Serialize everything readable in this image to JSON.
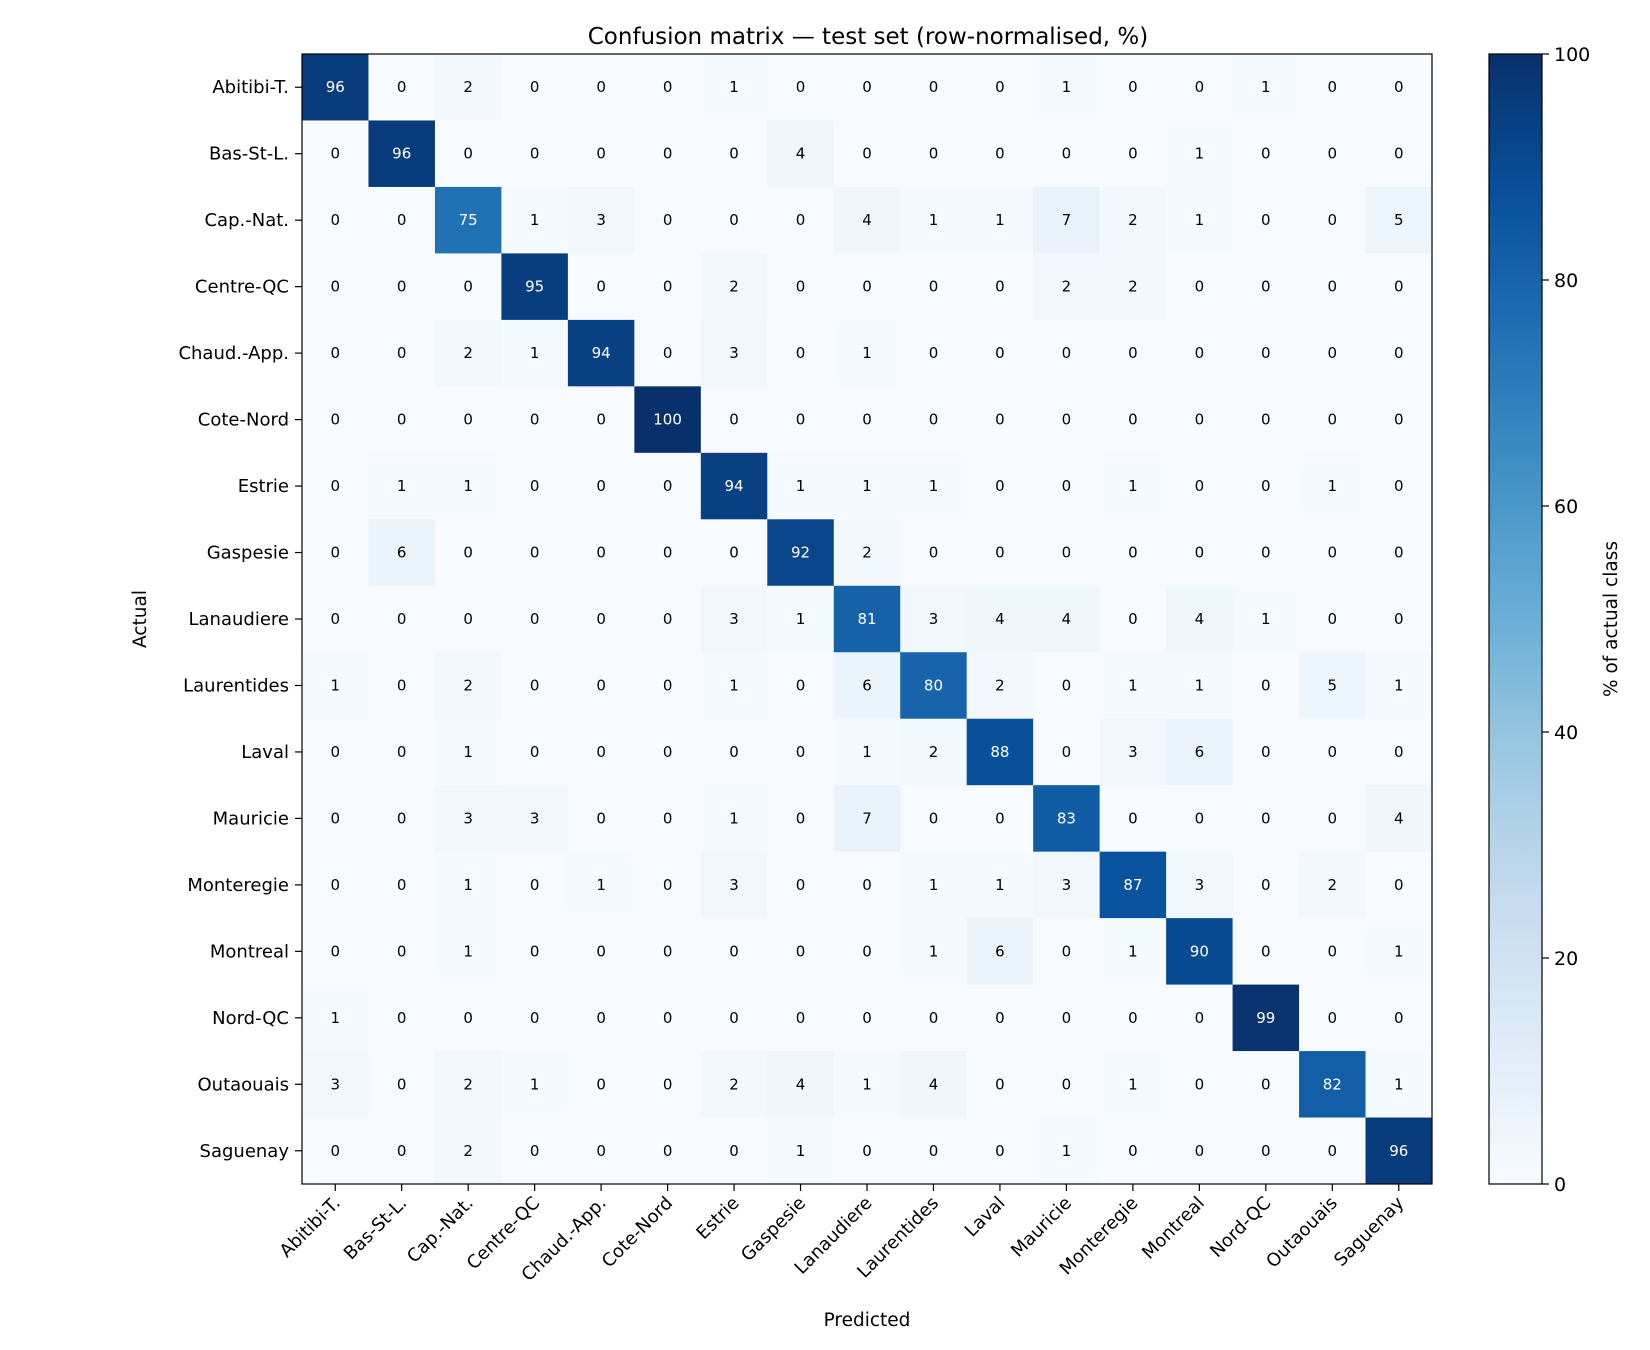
{
  "chart_data": {
    "type": "heatmap",
    "title": "Confusion matrix — test set (row-normalised, %)",
    "xlabel": "Predicted",
    "ylabel": "Actual",
    "colorbar_label": "% of actual class",
    "colormap": "Blues",
    "color_low": "#f7fbff",
    "color_high": "#08306b",
    "vmin": 0,
    "vmax": 100,
    "colorbar_ticks": [
      0,
      20,
      40,
      60,
      80,
      100
    ],
    "row_labels": [
      "Abitibi-T.",
      "Bas-St-L.",
      "Cap.-Nat.",
      "Centre-QC",
      "Chaud.-App.",
      "Cote-Nord",
      "Estrie",
      "Gaspesie",
      "Lanaudiere",
      "Laurentides",
      "Laval",
      "Mauricie",
      "Monteregie",
      "Montreal",
      "Nord-QC",
      "Outaouais",
      "Saguenay"
    ],
    "col_labels": [
      "Abitibi-T.",
      "Bas-St-L.",
      "Cap.-Nat.",
      "Centre-QC",
      "Chaud.-App.",
      "Cote-Nord",
      "Estrie",
      "Gaspesie",
      "Lanaudiere",
      "Laurentides",
      "Laval",
      "Mauricie",
      "Monteregie",
      "Montreal",
      "Nord-QC",
      "Outaouais",
      "Saguenay"
    ],
    "values": [
      [
        96,
        0,
        2,
        0,
        0,
        0,
        1,
        0,
        0,
        0,
        0,
        1,
        0,
        0,
        1,
        0,
        0
      ],
      [
        0,
        96,
        0,
        0,
        0,
        0,
        0,
        4,
        0,
        0,
        0,
        0,
        0,
        1,
        0,
        0,
        0
      ],
      [
        0,
        0,
        75,
        1,
        3,
        0,
        0,
        0,
        4,
        1,
        1,
        7,
        2,
        1,
        0,
        0,
        5
      ],
      [
        0,
        0,
        0,
        95,
        0,
        0,
        2,
        0,
        0,
        0,
        0,
        2,
        2,
        0,
        0,
        0,
        0
      ],
      [
        0,
        0,
        2,
        1,
        94,
        0,
        3,
        0,
        1,
        0,
        0,
        0,
        0,
        0,
        0,
        0,
        0
      ],
      [
        0,
        0,
        0,
        0,
        0,
        100,
        0,
        0,
        0,
        0,
        0,
        0,
        0,
        0,
        0,
        0,
        0
      ],
      [
        0,
        1,
        1,
        0,
        0,
        0,
        94,
        1,
        1,
        1,
        0,
        0,
        1,
        0,
        0,
        1,
        0
      ],
      [
        0,
        6,
        0,
        0,
        0,
        0,
        0,
        92,
        2,
        0,
        0,
        0,
        0,
        0,
        0,
        0,
        0
      ],
      [
        0,
        0,
        0,
        0,
        0,
        0,
        3,
        1,
        81,
        3,
        4,
        4,
        0,
        4,
        1,
        0,
        0
      ],
      [
        1,
        0,
        2,
        0,
        0,
        0,
        1,
        0,
        6,
        80,
        2,
        0,
        1,
        1,
        0,
        5,
        1
      ],
      [
        0,
        0,
        1,
        0,
        0,
        0,
        0,
        0,
        1,
        2,
        88,
        0,
        3,
        6,
        0,
        0,
        0
      ],
      [
        0,
        0,
        3,
        3,
        0,
        0,
        1,
        0,
        7,
        0,
        0,
        83,
        0,
        0,
        0,
        0,
        4
      ],
      [
        0,
        0,
        1,
        0,
        1,
        0,
        3,
        0,
        0,
        1,
        1,
        3,
        87,
        3,
        0,
        2,
        0
      ],
      [
        0,
        0,
        1,
        0,
        0,
        0,
        0,
        0,
        0,
        1,
        6,
        0,
        1,
        90,
        0,
        0,
        1
      ],
      [
        1,
        0,
        0,
        0,
        0,
        0,
        0,
        0,
        0,
        0,
        0,
        0,
        0,
        0,
        99,
        0,
        0
      ],
      [
        3,
        0,
        2,
        1,
        0,
        0,
        2,
        4,
        1,
        4,
        0,
        0,
        1,
        0,
        0,
        82,
        1
      ],
      [
        0,
        0,
        2,
        0,
        0,
        0,
        0,
        1,
        0,
        0,
        0,
        1,
        0,
        0,
        0,
        0,
        96
      ]
    ]
  }
}
